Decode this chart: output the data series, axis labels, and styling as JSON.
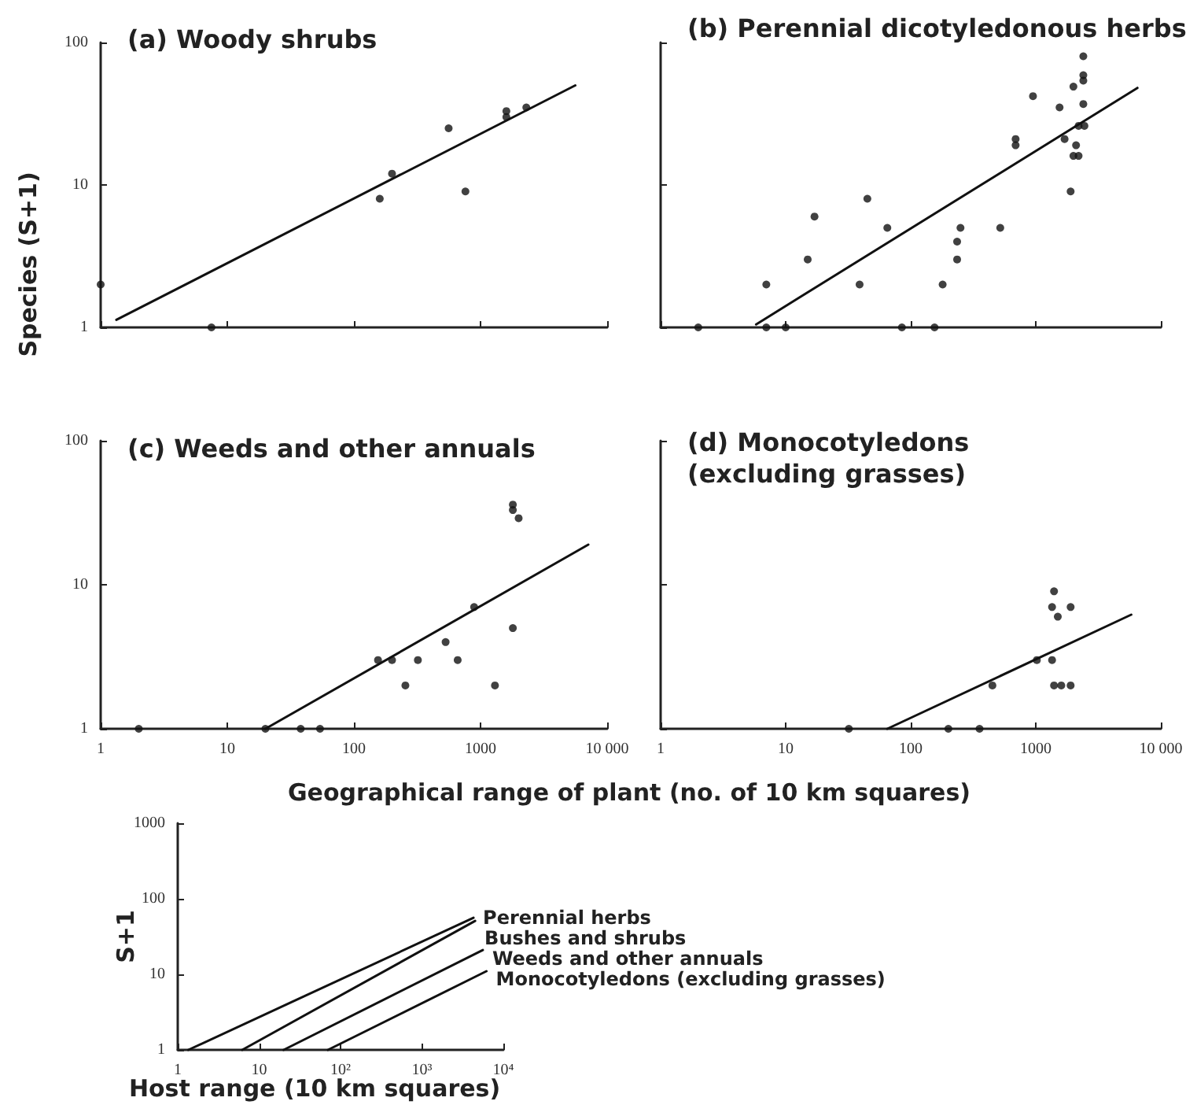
{
  "chart_data": [
    {
      "type": "scatter",
      "title": "(a) Woody shrubs",
      "ylabel": "Species (S+1)",
      "xlim": [
        1,
        10000
      ],
      "ylim": [
        1,
        100
      ],
      "xticks": [
        1,
        10,
        100,
        1000,
        10000
      ],
      "yticks": [
        1,
        10,
        100
      ],
      "log": "xy",
      "grid": false,
      "tick_labels": "y",
      "marker": "circle",
      "series": [
        {
          "color": "#111111",
          "x": [
            1,
            7.5,
            160,
            200,
            560,
            760,
            1600,
            1600,
            2300
          ],
          "values": [
            2,
            1,
            8,
            12,
            25,
            9,
            33,
            30,
            35
          ]
        },
        {
          "type": "line",
          "color": "#111111",
          "marker": "none",
          "x": [
            1.33,
            5600
          ],
          "values": [
            1.13,
            50
          ]
        }
      ]
    },
    {
      "type": "scatter",
      "title": "(b) Perennial dicotyledonous herbs",
      "xlim": [
        1,
        10000
      ],
      "ylim": [
        1,
        100
      ],
      "xticks": [
        1,
        10,
        100,
        1000,
        10000
      ],
      "yticks": [
        1,
        10,
        100
      ],
      "log": "xy",
      "grid": false,
      "tick_labels": false,
      "marker": "circle",
      "series": [
        {
          "color": "#111111",
          "x": [
            2,
            7,
            10,
            85,
            155,
            7,
            15,
            17,
            39,
            45,
            65,
            180,
            235,
            235,
            250,
            520,
            690,
            690,
            950,
            1550,
            1700,
            1900,
            2000,
            2100,
            2000,
            2200,
            2200,
            2450,
            2400,
            2400,
            2400,
            2400
          ],
          "values": [
            1,
            1,
            1,
            1,
            1,
            2,
            3,
            6,
            2,
            8,
            5,
            2,
            3,
            4,
            5,
            5,
            21,
            19,
            42,
            35,
            21,
            9,
            49,
            19,
            16,
            16,
            26,
            26,
            80,
            59,
            54,
            37
          ]
        },
        {
          "type": "line",
          "color": "#111111",
          "marker": "none",
          "x": [
            5.8,
            6500
          ],
          "values": [
            1.05,
            48
          ]
        }
      ]
    },
    {
      "type": "scatter",
      "title": "(c) Weeds and other annuals",
      "xlabel": "Geographical range of plant (no. of 10 km squares)",
      "xlim": [
        1,
        10000
      ],
      "ylim": [
        1,
        100
      ],
      "xticks": [
        1,
        10,
        100,
        1000,
        {
          "value": 10000,
          "label": "10 000"
        }
      ],
      "yticks": [
        1,
        10,
        100
      ],
      "log": "xy",
      "grid": false,
      "marker": "circle",
      "series": [
        {
          "color": "#111111",
          "x": [
            2,
            20,
            38,
            54,
            155,
            200,
            255,
            320,
            530,
            660,
            890,
            1300,
            1800,
            1800,
            1800,
            2000
          ],
          "values": [
            1,
            1,
            1,
            1,
            3,
            3,
            2,
            3,
            4,
            3,
            7,
            2,
            5,
            36,
            33,
            29
          ]
        },
        {
          "type": "line",
          "color": "#111111",
          "marker": "none",
          "x": [
            20,
            7100
          ],
          "values": [
            1,
            19
          ]
        }
      ]
    },
    {
      "type": "scatter",
      "title": "(d) Monocotyledons\n(excluding grasses)",
      "xlim": [
        1,
        10000
      ],
      "ylim": [
        1,
        100
      ],
      "xticks": [
        1,
        10,
        100,
        1000,
        {
          "value": 10000,
          "label": "10 000"
        }
      ],
      "yticks": [
        1,
        10,
        100
      ],
      "log": "xy",
      "grid": false,
      "tick_labels": "x",
      "marker": "circle",
      "series": [
        {
          "color": "#111111",
          "x": [
            32,
            200,
            355,
            450,
            1020,
            1350,
            1400,
            1600,
            1900,
            1400,
            1350,
            1900,
            1500
          ],
          "values": [
            1,
            1,
            1,
            2,
            3,
            3,
            2,
            2,
            2,
            9,
            7,
            7,
            6
          ]
        },
        {
          "type": "line",
          "color": "#111111",
          "marker": "none",
          "x": [
            65,
            5800
          ],
          "values": [
            1,
            6.2
          ]
        }
      ]
    },
    {
      "type": "line",
      "ylabel": "S+1",
      "xlabel": "Host range (10 km squares)",
      "xlim": [
        1,
        10000
      ],
      "ylim": [
        1,
        1000
      ],
      "xticks": [
        1,
        10,
        {
          "value": 100,
          "label": "10²"
        },
        {
          "value": 1000,
          "label": "10³"
        },
        {
          "value": 10000,
          "label": "10⁴"
        }
      ],
      "yticks": [
        1,
        10,
        100,
        1000
      ],
      "log": "xy",
      "grid": false,
      "marker": "none",
      "series": [
        {
          "name": "Perennial herbs",
          "color": "#111111",
          "x": [
            1.35,
            4300
          ],
          "values": [
            1,
            56
          ]
        },
        {
          "name": "Bushes and shrubs",
          "color": "#111111",
          "x": [
            6.2,
            4500
          ],
          "values": [
            1,
            51
          ]
        },
        {
          "name": "Weeds and other annuals",
          "color": "#111111",
          "x": [
            20,
            5600
          ],
          "values": [
            1,
            21
          ]
        },
        {
          "name": "Monocotyledons (excluding grasses)",
          "color": "#111111",
          "x": [
            70,
            6200
          ],
          "values": [
            1,
            11
          ]
        }
      ]
    }
  ]
}
